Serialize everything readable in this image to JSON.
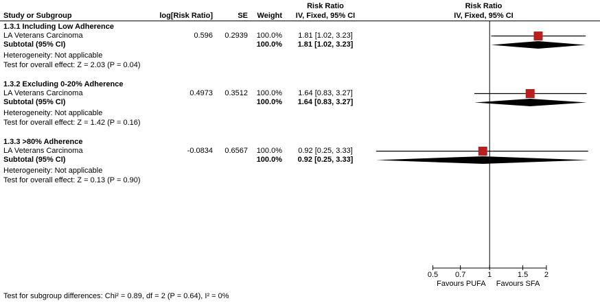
{
  "header": {
    "col_study": "Study or Subgroup",
    "col_log_rr": "log[Risk Ratio]",
    "col_se": "SE",
    "col_weight": "Weight",
    "col_effect_title": "Risk Ratio",
    "col_effect_sub": "IV, Fixed, 95% CI",
    "col_plot_title": "Risk Ratio",
    "col_plot_sub": "IV, Fixed, 95% CI"
  },
  "footer": {
    "subgroup_test": "Test for subgroup differences: Chi² = 0.89, df = 2 (P = 0.64), I² = 0%"
  },
  "colors": {
    "square": "#b8201e",
    "diamond": "#000000",
    "line": "#000000",
    "text": "#000000",
    "background": "#ffffff"
  },
  "chart_data": {
    "type": "forest",
    "effect_label": "Risk Ratio",
    "method_label": "IV, Fixed, 95% CI",
    "x_scale": "log",
    "x_range": [
      0.24,
      3.6
    ],
    "x_ticks": [
      0.5,
      0.7,
      1,
      1.5,
      2
    ],
    "x_tick_labels": [
      "0.5",
      "0.7",
      "1",
      "1.5",
      "2"
    ],
    "favours_left": "Favours PUFA",
    "favours_right": "Favours SFA",
    "subgroups": [
      {
        "title": "1.3.1 Including Low Adherence",
        "studies": [
          {
            "name": "LA Veterans Carcinoma",
            "log_rr": "0.596",
            "se": "0.2939",
            "weight": "100.0%",
            "effect_text": "1.81 [1.02, 3.23]",
            "est": 1.81,
            "ci_low": 1.02,
            "ci_high": 3.23
          }
        ],
        "subtotal": {
          "label": "Subtotal (95% CI)",
          "weight": "100.0%",
          "effect_text": "1.81 [1.02, 3.23]",
          "est": 1.81,
          "ci_low": 1.02,
          "ci_high": 3.23
        },
        "heterogeneity": "Heterogeneity: Not applicable",
        "overall_effect": "Test for overall effect: Z = 2.03 (P = 0.04)"
      },
      {
        "title": "1.3.2 Excluding 0-20% Adherence",
        "studies": [
          {
            "name": "LA Veterans Carcinoma",
            "log_rr": "0.4973",
            "se": "0.3512",
            "weight": "100.0%",
            "effect_text": "1.64 [0.83, 3.27]",
            "est": 1.64,
            "ci_low": 0.83,
            "ci_high": 3.27
          }
        ],
        "subtotal": {
          "label": "Subtotal (95% CI)",
          "weight": "100.0%",
          "effect_text": "1.64 [0.83, 3.27]",
          "est": 1.64,
          "ci_low": 0.83,
          "ci_high": 3.27
        },
        "heterogeneity": "Heterogeneity: Not applicable",
        "overall_effect": "Test for overall effect: Z = 1.42 (P = 0.16)"
      },
      {
        "title": "1.3.3 >80% Adherence",
        "studies": [
          {
            "name": "LA Veterans Carcinoma",
            "log_rr": "-0.0834",
            "se": "0.6567",
            "weight": "100.0%",
            "effect_text": "0.92 [0.25, 3.33]",
            "est": 0.92,
            "ci_low": 0.25,
            "ci_high": 3.33
          }
        ],
        "subtotal": {
          "label": "Subtotal (95% CI)",
          "weight": "100.0%",
          "effect_text": "0.92 [0.25, 3.33]",
          "est": 0.92,
          "ci_low": 0.25,
          "ci_high": 3.33
        },
        "heterogeneity": "Heterogeneity: Not applicable",
        "overall_effect": "Test for overall effect: Z = 0.13 (P = 0.90)"
      }
    ]
  }
}
